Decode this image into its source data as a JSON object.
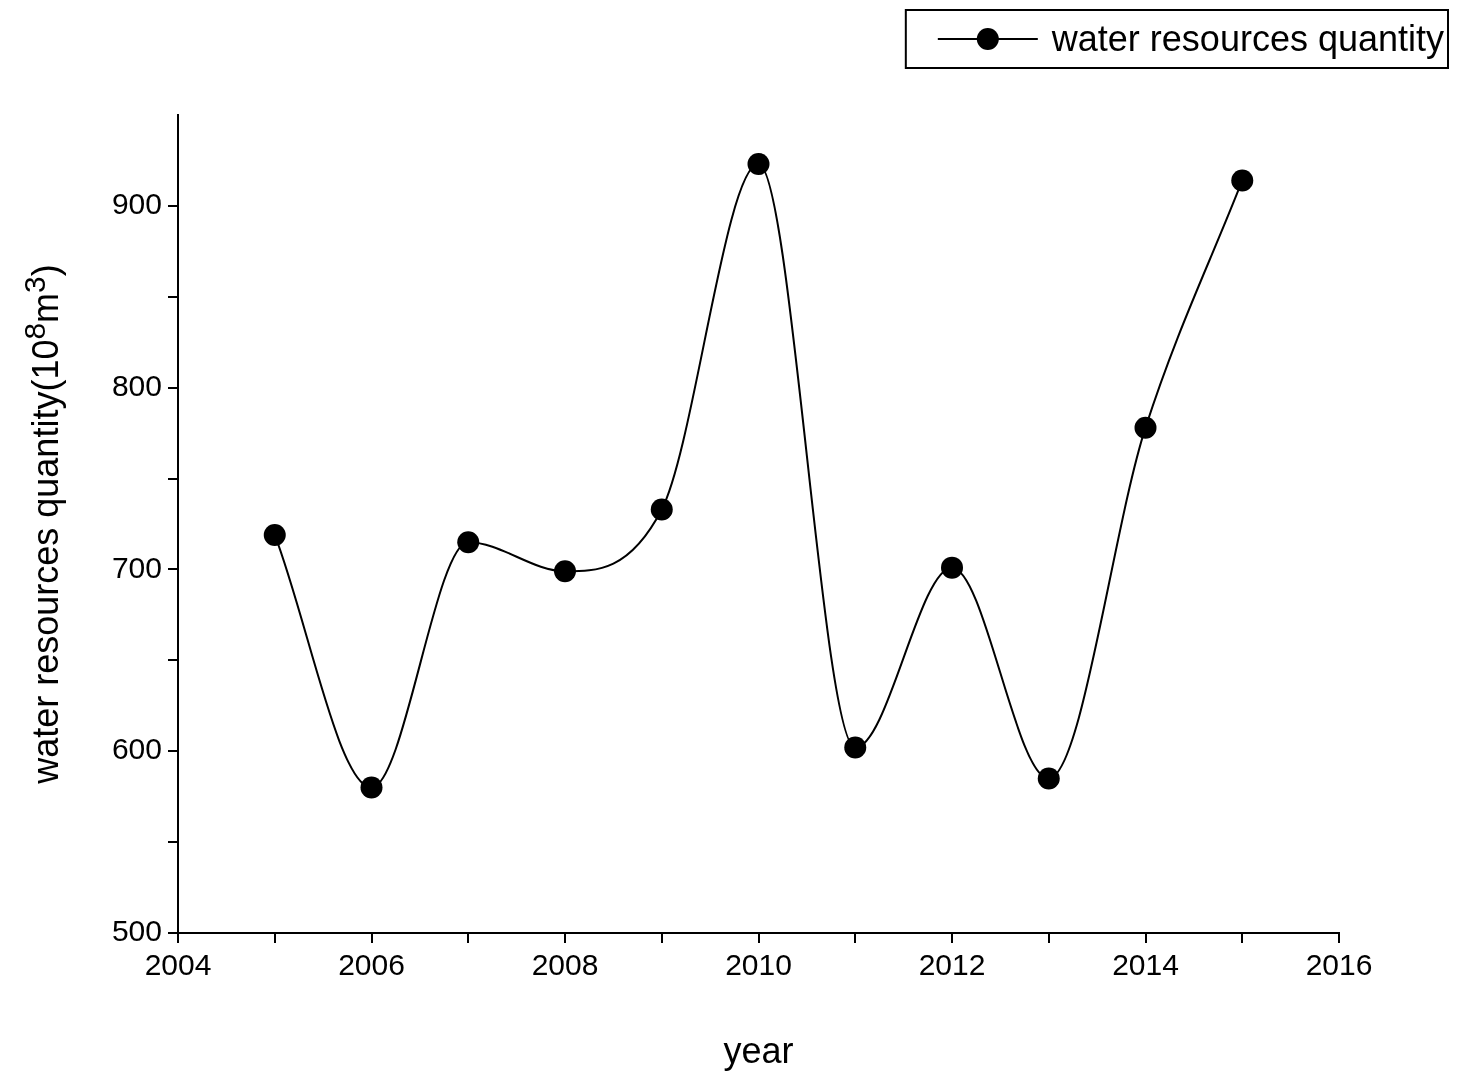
{
  "chart_data": {
    "type": "line",
    "xlabel": "year",
    "ylabel": "water resources quantity(10$^{8}$m$^{3}$)",
    "x": [
      2005,
      2006,
      2007,
      2008,
      2009,
      2010,
      2011,
      2012,
      2013,
      2014,
      2015
    ],
    "series": [
      {
        "name": "water resources quantity",
        "color": "#000000",
        "values": [
          719,
          580,
          715,
          699,
          733,
          923,
          602,
          701,
          585,
          778,
          914
        ]
      }
    ],
    "xlim": [
      2004,
      2016
    ],
    "xticks": [
      2004,
      {
        "value": 2005,
        "label": null
      },
      2006,
      {
        "value": 2007,
        "label": null
      },
      2008,
      {
        "value": 2009,
        "label": null
      },
      2010,
      {
        "value": 2011,
        "label": null
      },
      2012,
      {
        "value": 2013,
        "label": null
      },
      2014,
      {
        "value": 2015,
        "label": null
      },
      2016
    ],
    "ylim": [
      500,
      950
    ],
    "yticks": [
      500,
      {
        "value": 550,
        "label": null
      },
      600,
      {
        "value": 650,
        "label": null
      },
      700,
      {
        "value": 750,
        "label": null
      },
      800,
      {
        "value": 850,
        "label": null
      },
      900
    ],
    "legend": "top right",
    "marker": "circle",
    "line_style": "solid",
    "grid": false
  }
}
